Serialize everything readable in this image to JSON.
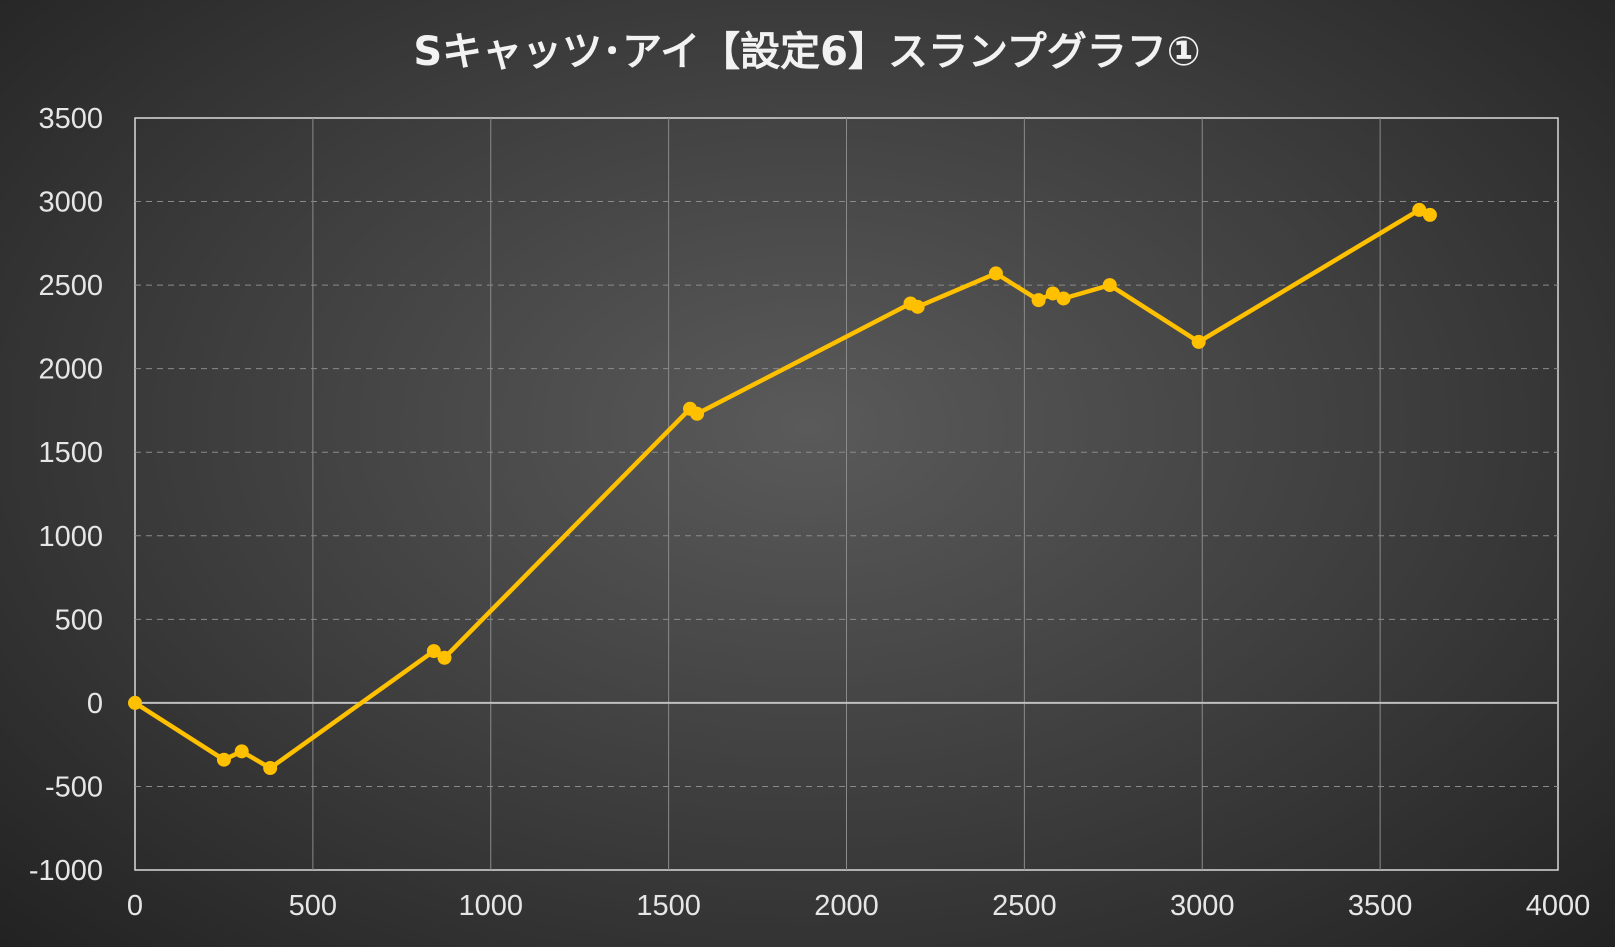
{
  "chart_data": {
    "type": "line",
    "title": "Sキャッツ･アイ【設定6】スランプグラフ①",
    "xlabel": "",
    "ylabel": "",
    "xlim": [
      0,
      4000
    ],
    "ylim": [
      -1000,
      3500
    ],
    "x_ticks": [
      "0",
      "500",
      "1000",
      "1500",
      "2000",
      "2500",
      "3000",
      "3500",
      "4000"
    ],
    "y_ticks": [
      "3500",
      "3000",
      "2500",
      "2000",
      "1500",
      "1000",
      "500",
      "0",
      "-500",
      "-1000"
    ],
    "grid": true,
    "legend": "none",
    "colors": {
      "line": "#FFC000",
      "grid": "#8a8a8a",
      "zero_line": "#bfbfbf",
      "axis_text": "#e6e6e6",
      "title": "#f2f2f2"
    },
    "series": [
      {
        "x": [
          0,
          250,
          300,
          380,
          840,
          870,
          1560,
          1580,
          2180,
          2200,
          2420,
          2540,
          2580,
          2610,
          2740,
          2990,
          3610,
          3640
        ],
        "y": [
          0,
          -340,
          -290,
          -390,
          310,
          270,
          1760,
          1730,
          2390,
          2370,
          2570,
          2410,
          2450,
          2420,
          2500,
          2160,
          2950,
          2920
        ]
      }
    ]
  }
}
